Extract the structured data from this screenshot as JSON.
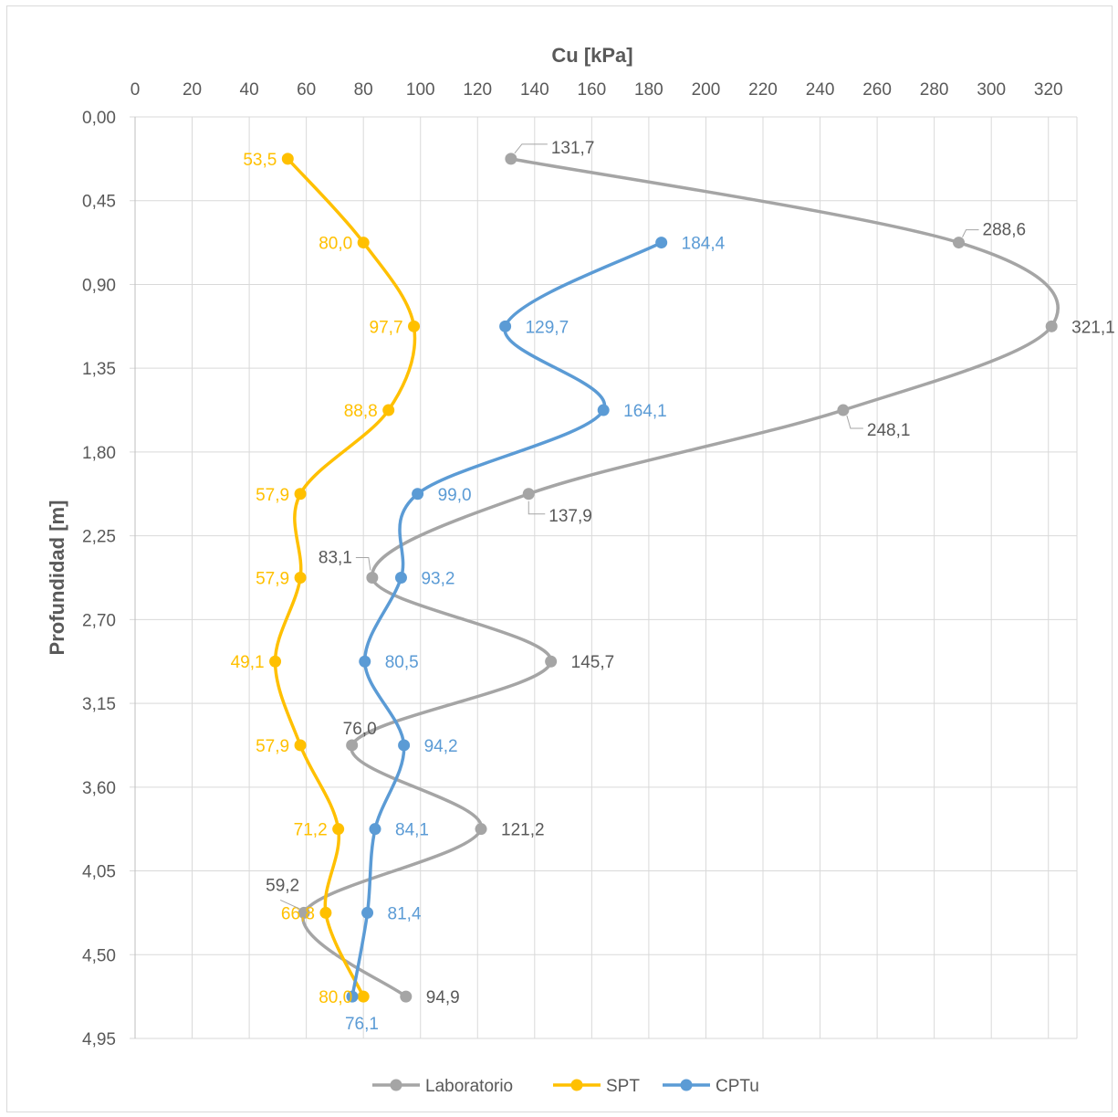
{
  "chart_data": {
    "type": "line",
    "orientation": "depth-profile",
    "title": "",
    "xlabel": "Cu [kPa]",
    "ylabel": "Profundidad [m]",
    "xlim": [
      0,
      330
    ],
    "ylim": [
      0,
      4.95
    ],
    "y_inverted": true,
    "x_axis_position": "top",
    "x_ticks": [
      0,
      20,
      40,
      60,
      80,
      100,
      120,
      140,
      160,
      180,
      200,
      220,
      240,
      260,
      280,
      300,
      320
    ],
    "x_tick_labels": [
      "0",
      "20",
      "40",
      "60",
      "80",
      "100",
      "120",
      "140",
      "160",
      "180",
      "200",
      "220",
      "240",
      "260",
      "280",
      "300",
      "320"
    ],
    "y_ticks": [
      0,
      0.45,
      0.9,
      1.35,
      1.8,
      2.25,
      2.7,
      3.15,
      3.6,
      4.05,
      4.5,
      4.95
    ],
    "y_tick_labels": [
      "0,00",
      "0,45",
      "0,90",
      "1,35",
      "1,80",
      "2,25",
      "2,70",
      "3,15",
      "3,60",
      "4,05",
      "4,50",
      "4,95"
    ],
    "grid": true,
    "legend_position": "bottom",
    "series": [
      {
        "name": "Laboratorio",
        "color": "#a5a5a5",
        "label_color": "#595959",
        "points": [
          {
            "x": 131.7,
            "y": 0.225,
            "label": "131,7"
          },
          {
            "x": 288.6,
            "y": 0.675,
            "label": "288,6"
          },
          {
            "x": 321.1,
            "y": 1.125,
            "label": "321,1"
          },
          {
            "x": 248.1,
            "y": 1.575,
            "label": "248,1"
          },
          {
            "x": 137.9,
            "y": 2.025,
            "label": "137,9"
          },
          {
            "x": 83.1,
            "y": 2.475,
            "label": "83,1"
          },
          {
            "x": 145.7,
            "y": 2.925,
            "label": "145,7"
          },
          {
            "x": 76.0,
            "y": 3.375,
            "label": "76,0"
          },
          {
            "x": 121.2,
            "y": 3.825,
            "label": "121,2"
          },
          {
            "x": 59.2,
            "y": 4.275,
            "label": "59,2"
          },
          {
            "x": 94.9,
            "y": 4.725,
            "label": "94,9"
          }
        ]
      },
      {
        "name": "SPT",
        "color": "#ffc000",
        "label_color": "#ffc000",
        "points": [
          {
            "x": 53.5,
            "y": 0.225,
            "label": "53,5"
          },
          {
            "x": 80.0,
            "y": 0.675,
            "label": "80,0"
          },
          {
            "x": 97.7,
            "y": 1.125,
            "label": "97,7"
          },
          {
            "x": 88.8,
            "y": 1.575,
            "label": "88,8"
          },
          {
            "x": 57.9,
            "y": 2.025,
            "label": "57,9"
          },
          {
            "x": 57.9,
            "y": 2.475,
            "label": "57,9"
          },
          {
            "x": 49.1,
            "y": 2.925,
            "label": "49,1"
          },
          {
            "x": 57.9,
            "y": 3.375,
            "label": "57,9"
          },
          {
            "x": 71.2,
            "y": 3.825,
            "label": "71,2"
          },
          {
            "x": 66.8,
            "y": 4.275,
            "label": "66,8"
          },
          {
            "x": 80.0,
            "y": 4.725,
            "label": "80,0"
          }
        ]
      },
      {
        "name": "CPTu",
        "color": "#5b9bd5",
        "label_color": "#5b9bd5",
        "points": [
          {
            "x": 184.4,
            "y": 0.675,
            "label": "184,4"
          },
          {
            "x": 129.7,
            "y": 1.125,
            "label": "129,7"
          },
          {
            "x": 164.1,
            "y": 1.575,
            "label": "164,1"
          },
          {
            "x": 99.0,
            "y": 2.025,
            "label": "99,0"
          },
          {
            "x": 93.2,
            "y": 2.475,
            "label": "93,2"
          },
          {
            "x": 80.5,
            "y": 2.925,
            "label": "80,5"
          },
          {
            "x": 94.2,
            "y": 3.375,
            "label": "94,2"
          },
          {
            "x": 84.1,
            "y": 3.825,
            "label": "84,1"
          },
          {
            "x": 81.4,
            "y": 4.275,
            "label": "81,4"
          },
          {
            "x": 76.1,
            "y": 4.725,
            "label": "76,1"
          }
        ]
      }
    ]
  }
}
